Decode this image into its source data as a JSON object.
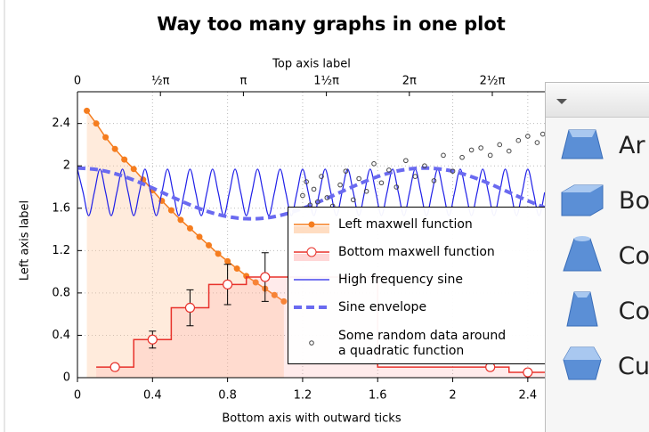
{
  "chart_data": {
    "type": "line",
    "title": "Way too many graphs in one plot",
    "x2_label": "Top axis label",
    "xlabel": "Bottom axis with outward ticks",
    "ylabel": "Left axis label",
    "xlim": [
      0,
      2.6
    ],
    "ylim": [
      0,
      2.7
    ],
    "x2lim": [
      0,
      9.236
    ],
    "xticks": [
      0,
      0.4,
      0.8,
      1.2,
      1.6,
      2,
      2.4
    ],
    "yticks": [
      0,
      0.4,
      0.8,
      1.2,
      1.6,
      2,
      2.4
    ],
    "x2ticks": [
      {
        "value": 0,
        "label": "0"
      },
      {
        "value": 1.5708,
        "label": "½π"
      },
      {
        "value": 3.1416,
        "label": "π"
      },
      {
        "value": 4.7124,
        "label": "1½π"
      },
      {
        "value": 6.2832,
        "label": "2π"
      },
      {
        "value": 7.854,
        "label": "2½π"
      }
    ],
    "grid": true,
    "series": [
      {
        "name": "Left maxwell function",
        "style": "line-markers",
        "color": "#f57d1f",
        "x": [
          0.05,
          0.1,
          0.15,
          0.2,
          0.25,
          0.3,
          0.35,
          0.4,
          0.45,
          0.5,
          0.55,
          0.6,
          0.65,
          0.7,
          0.75,
          0.8,
          0.85,
          0.9,
          0.95,
          1.0,
          1.05,
          1.1
        ],
        "values": [
          2.52,
          2.4,
          2.27,
          2.16,
          2.06,
          1.97,
          1.87,
          1.77,
          1.67,
          1.58,
          1.49,
          1.41,
          1.33,
          1.25,
          1.17,
          1.1,
          1.03,
          0.96,
          0.9,
          0.84,
          0.78,
          0.72
        ]
      },
      {
        "name": "Bottom maxwell function",
        "style": "steps",
        "color": "#e8322b",
        "x": [
          0.2,
          0.4,
          0.6,
          0.8,
          1.0,
          2.2,
          2.4
        ],
        "values": [
          0.1,
          0.36,
          0.66,
          0.88,
          0.95,
          0.1,
          0.05
        ],
        "errors": [
          0.03,
          0.08,
          0.17,
          0.19,
          0.23,
          0.03,
          0.02
        ]
      },
      {
        "name": "High frequency sine",
        "style": "line",
        "color": "#2020e8",
        "x": [
          0,
          0.03,
          0.06,
          0.09,
          0.12,
          0.15,
          0.18,
          0.21,
          0.24,
          0.27,
          0.3,
          0.33,
          0.36,
          0.39,
          0.42,
          0.45,
          0.48,
          0.51,
          0.54,
          0.57,
          0.6,
          0.63,
          0.66,
          0.69,
          0.72,
          0.75,
          0.78,
          0.81,
          0.84,
          0.87,
          0.9,
          0.93,
          0.96,
          0.99,
          1.02,
          1.05,
          1.08,
          1.11,
          1.14,
          1.17,
          1.2,
          1.23,
          1.26,
          1.29,
          1.32,
          1.35,
          1.38,
          1.41,
          1.44,
          1.47,
          1.5,
          1.53,
          1.56,
          1.59,
          1.62,
          1.65,
          1.68,
          1.71,
          1.74,
          1.77,
          1.8,
          1.83,
          1.86,
          1.89,
          1.92,
          1.95,
          1.98,
          2.01,
          2.04,
          2.07,
          2.1,
          2.13,
          2.16,
          2.19,
          2.22,
          2.25,
          2.28,
          2.31,
          2.34,
          2.37,
          2.4,
          2.43,
          2.46,
          2.49
        ],
        "values": [
          1.97,
          1.75,
          1.53,
          1.75,
          1.97,
          1.75,
          1.53,
          1.75,
          1.97,
          1.75,
          1.53,
          1.75,
          1.97,
          1.75,
          1.53,
          1.75,
          1.97,
          1.75,
          1.53,
          1.75,
          1.97,
          1.75,
          1.53,
          1.75,
          1.97,
          1.75,
          1.53,
          1.75,
          1.97,
          1.75,
          1.53,
          1.75,
          1.97,
          1.75,
          1.53,
          1.75,
          1.97,
          1.75,
          1.53,
          1.75,
          1.97,
          1.75,
          1.53,
          1.75,
          1.97,
          1.75,
          1.53,
          1.75,
          1.97,
          1.75,
          1.53,
          1.75,
          1.97,
          1.75,
          1.53,
          1.75,
          1.97,
          1.75,
          1.53,
          1.75,
          1.97,
          1.75,
          1.53,
          1.75,
          1.97,
          1.75,
          1.53,
          1.75,
          1.97,
          1.75,
          1.53,
          1.75,
          1.97,
          1.75,
          1.53,
          1.75,
          1.97,
          1.75,
          1.53,
          1.75,
          1.97,
          1.75,
          1.53,
          1.75
        ]
      },
      {
        "name": "Sine envelope",
        "style": "dashed",
        "color": "#6a6af0",
        "x": [
          0,
          0.1,
          0.2,
          0.3,
          0.4,
          0.5,
          0.6,
          0.7,
          0.8,
          0.9,
          1.0,
          1.1,
          1.2,
          1.3,
          1.4,
          1.5,
          1.6,
          1.7,
          1.8,
          1.9,
          2.0,
          2.1,
          2.2,
          2.3,
          2.4,
          2.5
        ],
        "values": [
          1.98,
          1.966,
          1.927,
          1.866,
          1.791,
          1.71,
          1.632,
          1.566,
          1.521,
          1.501,
          1.507,
          1.541,
          1.598,
          1.67,
          1.75,
          1.829,
          1.899,
          1.95,
          1.976,
          1.976,
          1.95,
          1.898,
          1.829,
          1.75,
          1.671,
          1.599
        ]
      },
      {
        "name": "Some random data around\na quadratic function",
        "style": "markers",
        "color": "#444444",
        "x": [
          1.2,
          1.22,
          1.24,
          1.26,
          1.28,
          1.3,
          1.33,
          1.36,
          1.4,
          1.43,
          1.47,
          1.5,
          1.54,
          1.58,
          1.62,
          1.66,
          1.7,
          1.75,
          1.8,
          1.85,
          1.9,
          1.95,
          2.0,
          2.05,
          2.1,
          2.15,
          2.2,
          2.25,
          2.3,
          2.35,
          2.4,
          2.45,
          2.48
        ],
        "values": [
          1.72,
          1.85,
          1.63,
          1.78,
          1.66,
          1.9,
          1.7,
          1.62,
          1.82,
          1.95,
          1.68,
          1.88,
          1.76,
          2.02,
          1.84,
          1.96,
          1.8,
          2.05,
          1.9,
          2.0,
          1.86,
          2.1,
          1.95,
          2.08,
          2.15,
          2.17,
          2.1,
          2.2,
          2.14,
          2.24,
          2.28,
          2.22,
          2.3
        ]
      }
    ]
  },
  "side_panel": {
    "items": [
      "Ar",
      "Bo",
      "Co",
      "Co",
      "Cu"
    ]
  }
}
